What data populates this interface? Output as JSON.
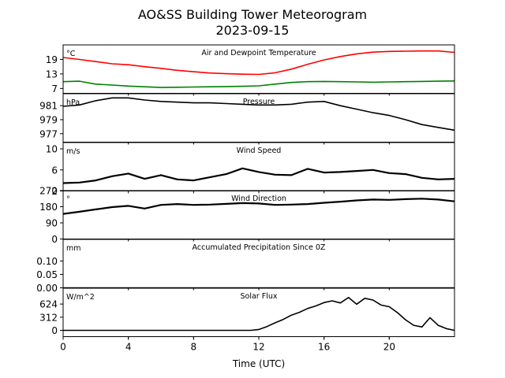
{
  "figure": {
    "title": "AO&SS Building Tower Meteorogram",
    "subtitle": "2023-09-15",
    "xlabel": "Time (UTC)"
  },
  "chart_data": [
    {
      "type": "line",
      "title": "Air and Dewpoint Temperature",
      "unit_label": "°C",
      "ylim": [
        5,
        25
      ],
      "yticks": [
        7,
        13,
        19
      ],
      "xlim": [
        0,
        24
      ],
      "series": [
        {
          "color": "#ff0000",
          "x": [
            0,
            1,
            2,
            3,
            4,
            5,
            6,
            7,
            8,
            9,
            10,
            11,
            12,
            13,
            14,
            15,
            16,
            17,
            18,
            19,
            20,
            21,
            22,
            23,
            24
          ],
          "values": [
            19.8,
            19.0,
            18.1,
            17.2,
            16.8,
            16.0,
            15.3,
            14.5,
            13.9,
            13.4,
            13.1,
            12.9,
            12.8,
            13.5,
            15.0,
            17.0,
            18.8,
            20.2,
            21.3,
            22.0,
            22.3,
            22.4,
            22.5,
            22.5,
            21.9
          ]
        },
        {
          "color": "#008000",
          "x": [
            0,
            1,
            2,
            3,
            4,
            5,
            6,
            7,
            8,
            9,
            10,
            11,
            12,
            13,
            14,
            15,
            16,
            17,
            18,
            19,
            20,
            21,
            22,
            23,
            24
          ],
          "values": [
            9.8,
            10.0,
            8.8,
            8.4,
            8.0,
            7.7,
            7.4,
            7.5,
            7.6,
            7.7,
            7.8,
            7.9,
            8.1,
            8.8,
            9.5,
            9.8,
            9.9,
            9.8,
            9.7,
            9.6,
            9.7,
            9.8,
            9.9,
            10.0,
            10.1
          ]
        }
      ]
    },
    {
      "type": "line",
      "title": "Pressure",
      "unit_label": "hPa",
      "ylim": [
        975.8,
        982.7
      ],
      "yticks": [
        977,
        979,
        981
      ],
      "xlim": [
        0,
        24
      ],
      "series": [
        {
          "color": "#000000",
          "x": [
            0,
            1,
            2,
            3,
            4,
            5,
            6,
            7,
            8,
            9,
            10,
            11,
            12,
            13,
            14,
            15,
            16,
            17,
            18,
            19,
            20,
            21,
            22,
            23,
            24
          ],
          "values": [
            980.9,
            981.1,
            981.7,
            982.1,
            982.1,
            981.8,
            981.6,
            981.5,
            981.4,
            981.4,
            981.3,
            981.2,
            981.1,
            981.1,
            981.2,
            981.5,
            981.6,
            981.0,
            980.5,
            980.0,
            979.6,
            979.0,
            978.3,
            977.9,
            977.5
          ]
        }
      ]
    },
    {
      "type": "line",
      "title": "Wind Speed",
      "unit_label": "m/s",
      "ylim": [
        2,
        11.2
      ],
      "yticks": [
        2,
        6,
        10
      ],
      "xlim": [
        0,
        24
      ],
      "series": [
        {
          "color": "#000000",
          "x": [
            0,
            1,
            2,
            3,
            4,
            5,
            6,
            7,
            8,
            9,
            10,
            11,
            12,
            13,
            14,
            15,
            16,
            17,
            18,
            19,
            20,
            21,
            22,
            23,
            24
          ],
          "values": [
            3.5,
            3.6,
            4.0,
            4.8,
            5.3,
            4.3,
            5.0,
            4.2,
            4.0,
            4.6,
            5.2,
            6.3,
            5.6,
            5.1,
            5.0,
            6.2,
            5.5,
            5.6,
            5.8,
            6.0,
            5.4,
            5.2,
            4.5,
            4.2,
            4.3
          ]
        }
      ]
    },
    {
      "type": "line",
      "title": "Wind Direction",
      "unit_label": "°",
      "ylim": [
        0,
        270
      ],
      "yticks": [
        0,
        90,
        180,
        270
      ],
      "xlim": [
        0,
        24
      ],
      "series": [
        {
          "color": "#000000",
          "x": [
            0,
            1,
            2,
            3,
            4,
            5,
            6,
            7,
            8,
            9,
            10,
            11,
            12,
            13,
            14,
            15,
            16,
            17,
            18,
            19,
            20,
            21,
            22,
            23,
            24
          ],
          "values": [
            140,
            152,
            165,
            178,
            185,
            170,
            190,
            195,
            190,
            192,
            196,
            200,
            198,
            190,
            192,
            195,
            202,
            208,
            215,
            220,
            218,
            222,
            225,
            220,
            210
          ]
        }
      ]
    },
    {
      "type": "line",
      "title": "Accumulated Precipitation Since 0Z",
      "unit_label": "mm",
      "ylim": [
        0,
        0.18
      ],
      "yticks": [
        0.0,
        0.05,
        0.1
      ],
      "xlim": [
        0,
        24
      ],
      "series": [
        {
          "color": "#000000",
          "x": [
            0,
            24
          ],
          "values": [
            0,
            0
          ]
        }
      ]
    },
    {
      "type": "line",
      "title": "Solar Flux",
      "unit_label": "W/m^2",
      "ylim": [
        -150,
        1000
      ],
      "yticks": [
        0,
        312,
        624
      ],
      "xlim": [
        0,
        24
      ],
      "series": [
        {
          "color": "#000000",
          "x": [
            0,
            11.5,
            12,
            12.5,
            13,
            13.5,
            14,
            14.5,
            15,
            15.5,
            16,
            16.5,
            17,
            17.5,
            18,
            18.5,
            19,
            19.5,
            20,
            20.5,
            21,
            21.5,
            22,
            22.5,
            23,
            23.5,
            24
          ],
          "values": [
            0,
            0,
            20,
            90,
            180,
            260,
            360,
            430,
            520,
            580,
            660,
            700,
            650,
            780,
            620,
            760,
            720,
            600,
            560,
            420,
            250,
            120,
            80,
            300,
            120,
            40,
            0
          ]
        }
      ]
    }
  ],
  "xaxis": {
    "ticks": [
      0,
      4,
      8,
      12,
      16,
      20
    ],
    "tick_labels": [
      "0",
      "4",
      "8",
      "12",
      "16",
      "20"
    ]
  }
}
